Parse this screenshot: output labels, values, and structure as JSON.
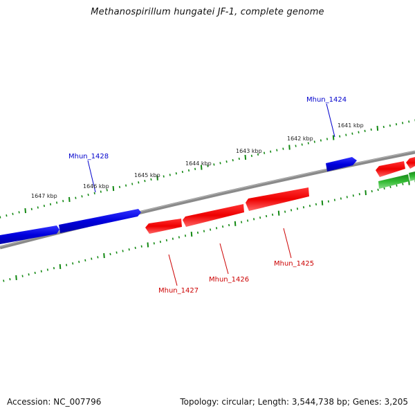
{
  "title": "Methanospirillum hungatei JF-1, complete genome",
  "footer": {
    "accession": "Accession: NC_007796",
    "stats": "Topology: circular; Length: 3,544,738 bp; Genes: 3,205"
  },
  "colors": {
    "forward_strand": "#0000dd",
    "reverse_strand": "#dd0000",
    "other_feature": "#22aa22",
    "backbone": "#808080",
    "ticks": "#118811"
  },
  "ruler_labels": [
    "1641 kbp",
    "1642 kbp",
    "1643 kbp",
    "1644 kbp",
    "1645 kbp",
    "1646 kbp",
    "1647 kbp"
  ],
  "gene_labels": {
    "mhun_1424": "Mhun_1424",
    "mhun_1428": "Mhun_1428",
    "mhun_1425": "Mhun_1425",
    "mhun_1426": "Mhun_1426",
    "mhun_1427": "Mhun_1427"
  }
}
